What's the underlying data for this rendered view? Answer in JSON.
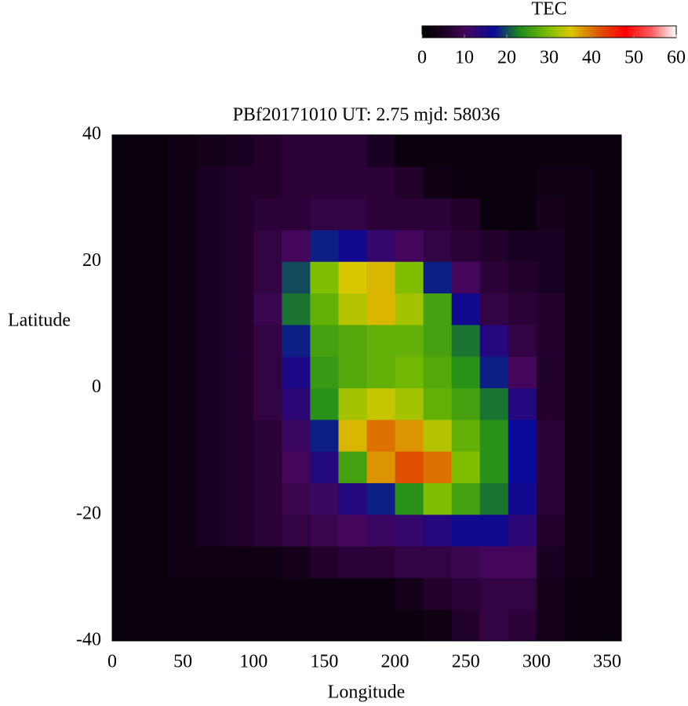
{
  "chart_data": {
    "type": "heatmap",
    "title": "PBf20171010  UT: 2.75  mjd: 58036",
    "x_label": "Longitude",
    "y_label": "Latitude",
    "xlim": [
      0,
      360
    ],
    "xticks": [
      0,
      50,
      100,
      150,
      200,
      250,
      300,
      350
    ],
    "ylim": [
      -40,
      40
    ],
    "yticks": [
      -40,
      -20,
      0,
      20,
      40
    ],
    "xbins": [
      0,
      20,
      40,
      60,
      80,
      100,
      120,
      140,
      160,
      180,
      200,
      220,
      240,
      260,
      280,
      300,
      320,
      340,
      360
    ],
    "ybins": [
      -40,
      -35,
      -30,
      -25,
      -20,
      -15,
      -10,
      -5,
      0,
      5,
      10,
      15,
      20,
      25,
      30,
      35,
      40
    ],
    "z": [
      [
        2,
        2,
        2,
        2,
        2,
        2,
        2,
        2,
        2,
        2,
        2,
        3,
        6,
        8,
        7,
        4,
        2,
        2
      ],
      [
        2,
        2,
        2,
        2,
        2,
        2,
        2,
        2,
        2,
        2,
        4,
        6,
        7,
        8,
        8,
        4,
        2,
        2
      ],
      [
        2,
        2,
        3,
        3,
        3,
        3,
        4,
        6,
        7,
        7,
        8,
        8,
        9,
        10,
        10,
        5,
        3,
        2
      ],
      [
        2,
        2,
        3,
        5,
        6,
        7,
        8,
        9,
        10,
        11,
        12,
        14,
        16,
        16,
        13,
        6,
        3,
        2
      ],
      [
        2,
        2,
        3,
        5,
        6,
        7,
        9,
        11,
        14,
        18,
        24,
        30,
        26,
        22,
        16,
        7,
        3,
        2
      ],
      [
        2,
        2,
        3,
        5,
        6,
        7,
        10,
        14,
        26,
        38,
        42,
        40,
        30,
        24,
        17,
        7,
        3,
        2
      ],
      [
        2,
        2,
        3,
        5,
        6,
        7,
        11,
        18,
        36,
        40,
        38,
        33,
        28,
        24,
        17,
        7,
        3,
        2
      ],
      [
        2,
        2,
        3,
        5,
        6,
        8,
        13,
        24,
        32,
        34,
        32,
        28,
        26,
        22,
        14,
        6,
        3,
        2
      ],
      [
        2,
        2,
        3,
        5,
        6,
        8,
        15,
        25,
        27,
        28,
        29,
        27,
        24,
        18,
        10,
        6,
        3,
        2
      ],
      [
        2,
        2,
        3,
        5,
        6,
        8,
        18,
        26,
        27,
        28,
        28,
        26,
        22,
        14,
        8,
        6,
        3,
        2
      ],
      [
        2,
        2,
        3,
        5,
        6,
        9,
        22,
        28,
        33,
        36,
        32,
        26,
        16,
        8,
        7,
        6,
        3,
        2
      ],
      [
        2,
        2,
        3,
        5,
        6,
        8,
        20,
        30,
        35,
        36,
        30,
        18,
        10,
        7,
        6,
        5,
        3,
        2
      ],
      [
        2,
        2,
        3,
        5,
        6,
        8,
        10,
        18,
        16,
        12,
        10,
        8,
        7,
        6,
        5,
        5,
        3,
        2
      ],
      [
        2,
        2,
        3,
        5,
        6,
        7,
        7,
        8,
        8,
        7,
        7,
        7,
        6,
        2,
        2,
        4,
        3,
        2
      ],
      [
        2,
        2,
        3,
        5,
        6,
        6,
        7,
        7,
        7,
        7,
        6,
        3,
        2,
        2,
        2,
        3,
        3,
        2
      ],
      [
        2,
        2,
        3,
        4,
        5,
        6,
        7,
        7,
        7,
        5,
        2,
        2,
        2,
        2,
        2,
        2,
        2,
        2
      ]
    ],
    "colorbar_label": "TEC",
    "clim": [
      0,
      60
    ],
    "cticks": [
      0,
      10,
      20,
      30,
      40,
      50,
      60
    ],
    "colorscale": [
      [
        0,
        "#000000"
      ],
      [
        5,
        "#1a0022"
      ],
      [
        10,
        "#44065a"
      ],
      [
        17,
        "#0a0a9a"
      ],
      [
        23,
        "#1c8a1c"
      ],
      [
        30,
        "#7fbf00"
      ],
      [
        35,
        "#d8c800"
      ],
      [
        42,
        "#e05000"
      ],
      [
        48,
        "#ff0000"
      ],
      [
        54,
        "#ff5a5a"
      ],
      [
        60,
        "#ffffff"
      ]
    ]
  }
}
